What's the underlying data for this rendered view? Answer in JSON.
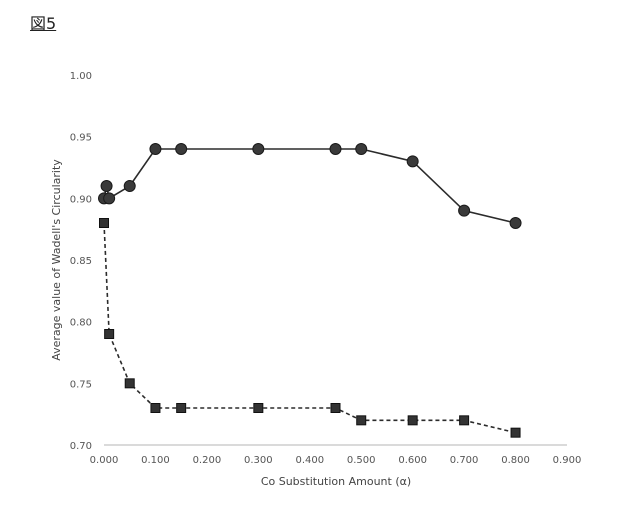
{
  "figure_label": "図5",
  "chart_data": {
    "type": "line",
    "xlabel": "Co Substitution Amount (α)",
    "ylabel": "Average value of Wadell's Circularity",
    "xlim": [
      0.0,
      0.9
    ],
    "ylim": [
      0.7,
      1.0
    ],
    "x_ticks": [
      "0.000",
      "0.100",
      "0.200",
      "0.300",
      "0.400",
      "0.500",
      "0.600",
      "0.700",
      "0.800",
      "0.900"
    ],
    "y_ticks": [
      "0.70",
      "0.75",
      "0.80",
      "0.85",
      "0.90",
      "0.95",
      "1.00"
    ],
    "grid": false,
    "series": [
      {
        "marker": "circle",
        "line": "solid",
        "color": "#2b2b2b",
        "points": [
          [
            0.0,
            0.9
          ],
          [
            0.005,
            0.91
          ],
          [
            0.01,
            0.9
          ],
          [
            0.05,
            0.91
          ],
          [
            0.1,
            0.94
          ],
          [
            0.15,
            0.94
          ],
          [
            0.3,
            0.94
          ],
          [
            0.45,
            0.94
          ],
          [
            0.5,
            0.94
          ],
          [
            0.6,
            0.93
          ],
          [
            0.7,
            0.89
          ],
          [
            0.8,
            0.88
          ]
        ]
      },
      {
        "marker": "square",
        "line": "dashed",
        "color": "#2b2b2b",
        "points": [
          [
            0.0,
            0.88
          ],
          [
            0.01,
            0.79
          ],
          [
            0.05,
            0.75
          ],
          [
            0.1,
            0.73
          ],
          [
            0.15,
            0.73
          ],
          [
            0.3,
            0.73
          ],
          [
            0.45,
            0.73
          ],
          [
            0.5,
            0.72
          ],
          [
            0.6,
            0.72
          ],
          [
            0.7,
            0.72
          ],
          [
            0.8,
            0.71
          ]
        ]
      }
    ]
  }
}
